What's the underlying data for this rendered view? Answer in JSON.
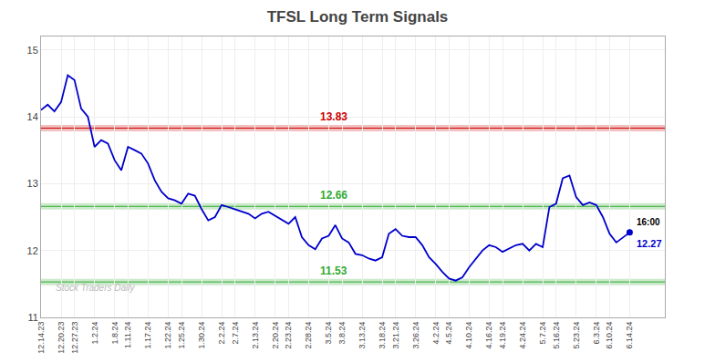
{
  "chart_data": {
    "type": "line",
    "title": "TFSL Long Term Signals",
    "categories": [
      "12.14.23",
      null,
      null,
      "12.20.23",
      null,
      "12.27.23",
      null,
      null,
      "1.2.24",
      null,
      null,
      "1.8.24",
      null,
      "1.11.24",
      null,
      null,
      "1.17.24",
      null,
      null,
      "1.22.24",
      null,
      "1.25.24",
      null,
      null,
      "1.30.24",
      null,
      null,
      "2.2.24",
      null,
      "2.7.24",
      null,
      null,
      "2.13.24",
      null,
      null,
      "2.20.24",
      null,
      "2.23.24",
      null,
      null,
      "2.28.24",
      null,
      null,
      "3.5.24",
      null,
      "3.8.24",
      null,
      null,
      "3.13.24",
      null,
      null,
      "3.18.24",
      null,
      "3.21.24",
      null,
      null,
      "3.26.24",
      null,
      null,
      "4.2.24",
      null,
      "4.5.24",
      null,
      null,
      "4.10.24",
      null,
      null,
      "4.16.24",
      null,
      "4.19.24",
      null,
      null,
      "4.24.24",
      null,
      null,
      "5.7.24",
      null,
      "5.16.24",
      null,
      null,
      "5.23.24",
      null,
      null,
      "6.3.24",
      null,
      "6.10.24",
      null,
      null,
      "6.14.24"
    ],
    "series": [
      {
        "name": "TFSL",
        "color": "#0000cc",
        "values": [
          14.1,
          14.18,
          14.08,
          14.22,
          14.62,
          14.55,
          14.12,
          14.0,
          13.55,
          13.65,
          13.6,
          13.35,
          13.2,
          13.55,
          13.5,
          13.45,
          13.3,
          13.05,
          12.88,
          12.78,
          12.75,
          12.7,
          12.85,
          12.82,
          12.62,
          12.45,
          12.5,
          12.68,
          12.65,
          12.62,
          12.58,
          12.55,
          12.48,
          12.55,
          12.58,
          12.52,
          12.45,
          12.4,
          12.5,
          12.2,
          12.08,
          12.02,
          12.18,
          12.22,
          12.38,
          12.18,
          12.12,
          11.95,
          11.93,
          11.88,
          11.85,
          11.9,
          12.25,
          12.32,
          12.22,
          12.2,
          12.2,
          12.08,
          11.9,
          11.8,
          11.68,
          11.58,
          11.55,
          11.6,
          11.75,
          11.88,
          12.0,
          12.08,
          12.05,
          11.98,
          12.03,
          12.08,
          12.1,
          12.0,
          12.1,
          12.05,
          12.65,
          12.7,
          13.08,
          13.12,
          12.8,
          12.68,
          12.72,
          12.68,
          12.5,
          12.25,
          12.12,
          12.2,
          12.27
        ]
      }
    ],
    "horizontal_lines": [
      {
        "y": 13.83,
        "color": "#cc0000",
        "label": "13.83"
      },
      {
        "y": 12.66,
        "color": "#33aa33",
        "label": "12.66"
      },
      {
        "y": 11.53,
        "color": "#33aa33",
        "label": "11.53"
      }
    ],
    "annotations": [
      {
        "text": "16:00",
        "color": "#000000"
      },
      {
        "text": "12.27",
        "color": "#0000cc"
      },
      {
        "text": "Stock Traders Daily",
        "color": "#bbbbbb"
      }
    ],
    "ylim": [
      11.0,
      15.2
    ],
    "yticks": [
      11,
      12,
      13,
      14,
      15
    ],
    "grid": true
  }
}
